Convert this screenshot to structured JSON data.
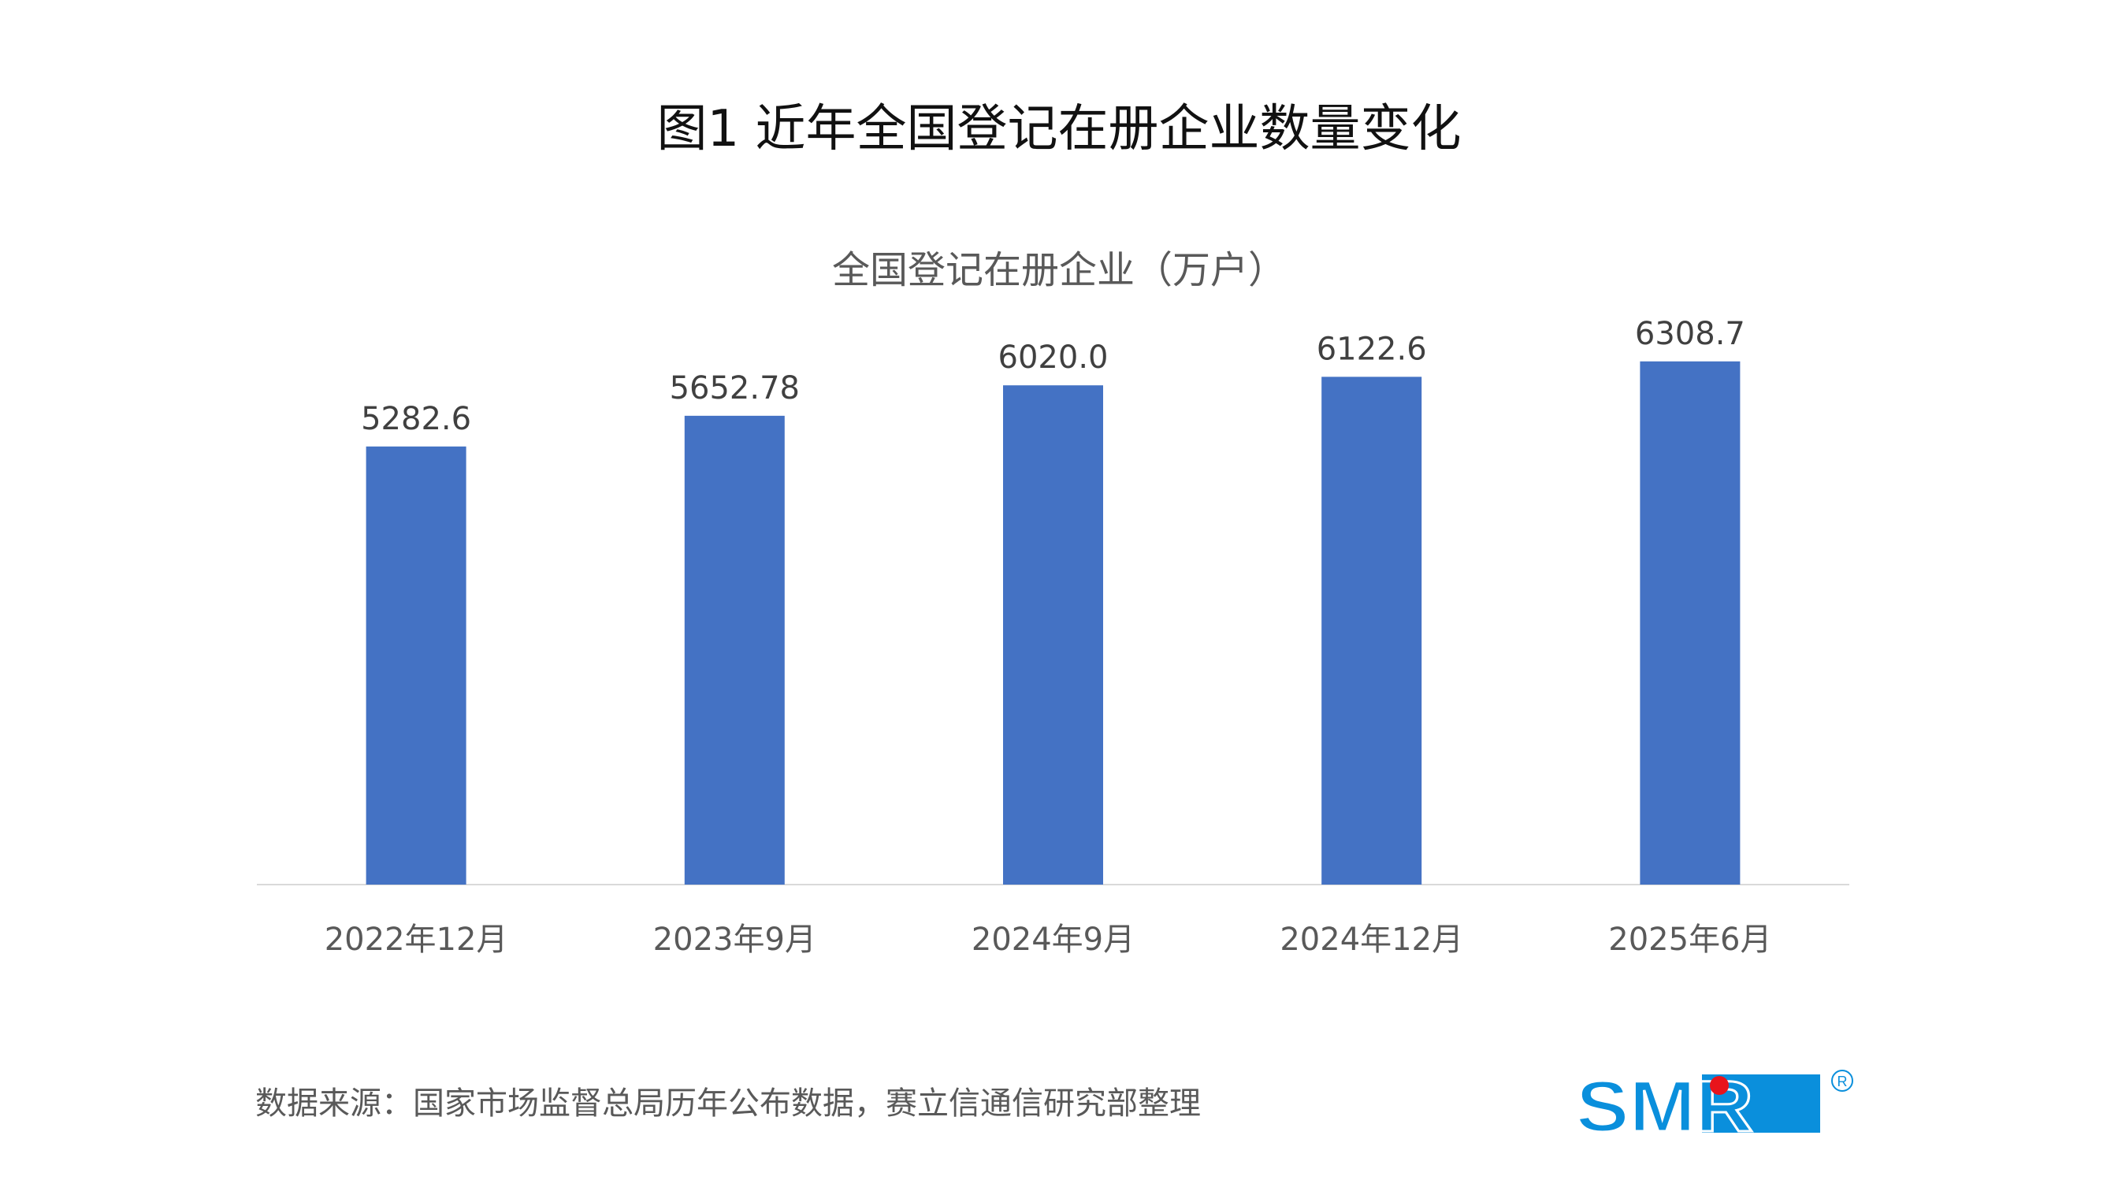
{
  "title": "图1 近年全国登记在册企业数量变化",
  "chart_data": {
    "type": "bar",
    "title": "全国登记在册企业（万户）",
    "categories": [
      "2022年12月",
      "2023年9月",
      "2024年9月",
      "2024年12月",
      "2025年6月"
    ],
    "values": [
      5282.6,
      5652.78,
      6020.0,
      6122.6,
      6308.7
    ],
    "value_labels": [
      "5282.6",
      "5652.78",
      "6020.0",
      "6122.6",
      "6308.7"
    ],
    "xlabel": "",
    "ylabel": "",
    "ylim": [
      0,
      7000
    ],
    "grid": false,
    "legend": "none",
    "bar_color": "#4472C4"
  },
  "source": "数据来源：国家市场监督总局历年公布数据，赛立信通信研究部整理",
  "logo": {
    "text": "SMR",
    "registered": "®",
    "color": "#0A8FDC",
    "dot_color": "#E8141B"
  }
}
